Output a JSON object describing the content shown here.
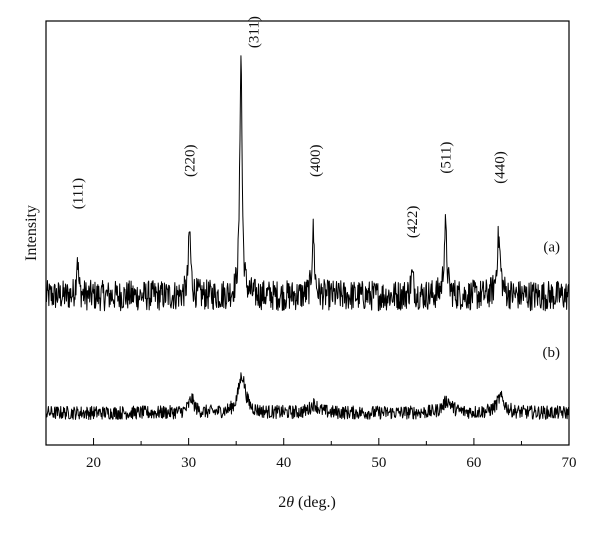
{
  "chart_data": {
    "type": "line",
    "xlabel": "2θ (deg.)",
    "xlabel_parts": {
      "prefix": "2",
      "symbol": "θ",
      "unit": " (deg.)"
    },
    "ylabel": "Intensity",
    "xlim": [
      15,
      70
    ],
    "x_ticks": [
      20,
      30,
      40,
      50,
      60,
      70
    ],
    "y_ticks": "none",
    "grid": false,
    "series": [
      {
        "name": "(a)",
        "baseline": 0.39,
        "noise": 0.045,
        "peaks": [
          {
            "x": 18.3,
            "height": 0.12,
            "width": 0.12
          },
          {
            "x": 30.1,
            "height": 0.19,
            "width": 0.15
          },
          {
            "x": 35.5,
            "height": 0.72,
            "width": 0.14
          },
          {
            "x": 43.1,
            "height": 0.19,
            "width": 0.15
          },
          {
            "x": 53.5,
            "height": 0.06,
            "width": 0.18
          },
          {
            "x": 57.0,
            "height": 0.2,
            "width": 0.18
          },
          {
            "x": 62.6,
            "height": 0.17,
            "width": 0.22
          }
        ]
      },
      {
        "name": "(b)",
        "baseline": 0.045,
        "noise": 0.02,
        "peaks": [
          {
            "x": 30.3,
            "height": 0.04,
            "width": 0.35
          },
          {
            "x": 35.6,
            "height": 0.11,
            "width": 0.45
          },
          {
            "x": 43.2,
            "height": 0.025,
            "width": 0.5
          },
          {
            "x": 57.2,
            "height": 0.035,
            "width": 0.55
          },
          {
            "x": 62.8,
            "height": 0.045,
            "width": 0.5
          }
        ]
      }
    ],
    "peak_labels": [
      {
        "text": "(111)",
        "x": 18.3,
        "anchor_y": 0.645
      },
      {
        "text": "(220)",
        "x": 30.1,
        "anchor_y": 0.74
      },
      {
        "text": "(311)",
        "x": 36.8,
        "anchor_y": 1.12
      },
      {
        "text": "(400)",
        "x": 43.3,
        "anchor_y": 0.74
      },
      {
        "text": "(422)",
        "x": 53.5,
        "anchor_y": 0.56
      },
      {
        "text": "(511)",
        "x": 57.0,
        "anchor_y": 0.75
      },
      {
        "text": "(440)",
        "x": 62.7,
        "anchor_y": 0.72
      }
    ]
  }
}
